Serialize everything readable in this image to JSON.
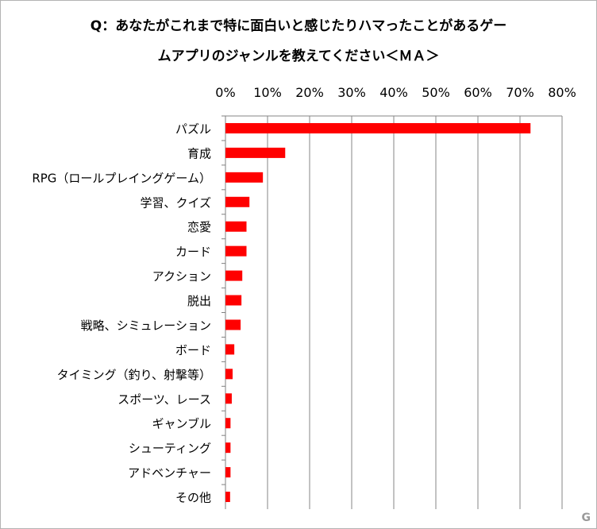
{
  "chart_data": {
    "type": "bar",
    "orientation": "horizontal",
    "title_lines": [
      "Q：あなたがこれまで特に面白いと感じたりハマったことがあるゲー",
      "ムアプリのジャンルを教えてください＜ＭＡ＞"
    ],
    "categories": [
      "パズル",
      "育成",
      "RPG（ロールプレイングゲーム）",
      "学習、クイズ",
      "恋愛",
      "カード",
      "アクション",
      "脱出",
      "戦略、シミュレーション",
      "ボード",
      "タイミング（釣り、射撃等）",
      "スポーツ、レース",
      "ギャンブル",
      "シューティング",
      "アドベンチャー",
      "その他"
    ],
    "values": [
      72.5,
      14.2,
      8.9,
      5.7,
      5.0,
      5.0,
      4.0,
      3.8,
      3.6,
      2.1,
      1.7,
      1.5,
      1.2,
      1.2,
      1.2,
      1.1
    ],
    "xlim": [
      0,
      80
    ],
    "x_ticks": [
      "0%",
      "10%",
      "20%",
      "30%",
      "40%",
      "50%",
      "60%",
      "70%",
      "80%"
    ],
    "x_axis_position": "top",
    "grid": true,
    "bar_color": "#ff0000"
  },
  "watermark": "G"
}
